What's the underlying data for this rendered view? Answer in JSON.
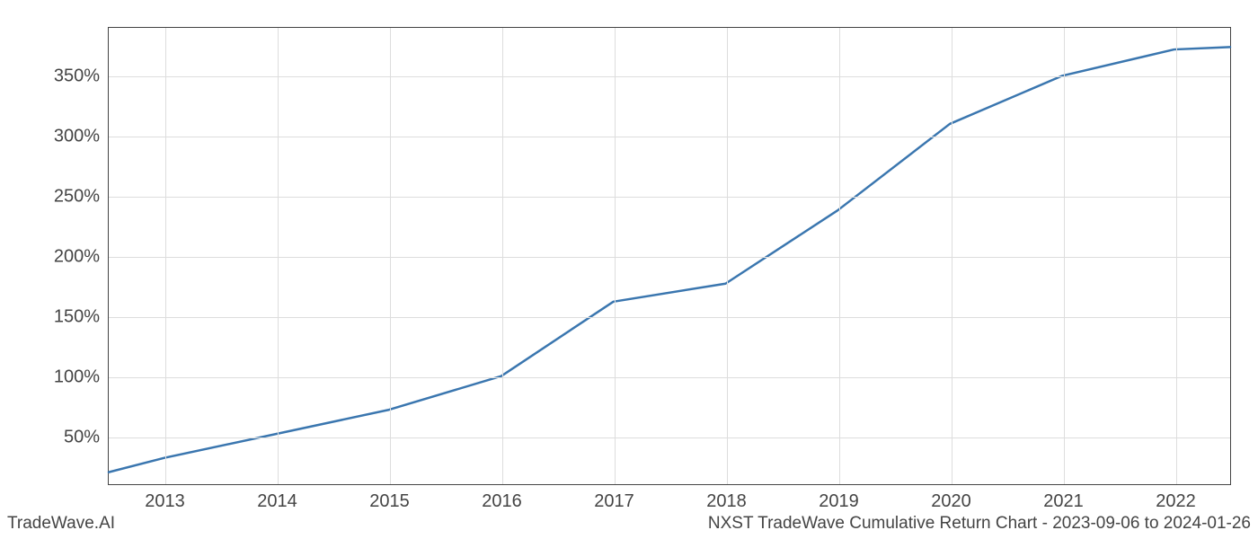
{
  "chart": {
    "type": "line",
    "background_color": "#ffffff",
    "grid_color": "#dddddd",
    "axis_color": "#444444",
    "tick_label_color": "#444444",
    "tick_label_fontsize": 20,
    "footer_fontsize": 19,
    "line_color": "#3a76af",
    "line_width": 2.5,
    "x": {
      "ticks": [
        2013,
        2014,
        2015,
        2016,
        2017,
        2018,
        2019,
        2020,
        2021,
        2022
      ],
      "lim": [
        2012.5,
        2022.5
      ]
    },
    "y": {
      "ticks": [
        50,
        100,
        150,
        200,
        250,
        300,
        350
      ],
      "tick_suffix": "%",
      "lim": [
        10,
        390
      ]
    },
    "series": [
      {
        "x": 2012.5,
        "y": 20
      },
      {
        "x": 2013,
        "y": 32
      },
      {
        "x": 2014,
        "y": 52
      },
      {
        "x": 2015,
        "y": 72
      },
      {
        "x": 2016,
        "y": 100
      },
      {
        "x": 2017,
        "y": 162
      },
      {
        "x": 2018,
        "y": 177
      },
      {
        "x": 2019,
        "y": 238
      },
      {
        "x": 2020,
        "y": 310
      },
      {
        "x": 2021,
        "y": 350
      },
      {
        "x": 2022,
        "y": 372
      },
      {
        "x": 2022.5,
        "y": 374
      }
    ]
  },
  "footer": {
    "left": "TradeWave.AI",
    "right": "NXST TradeWave Cumulative Return Chart - 2023-09-06 to 2024-01-26"
  }
}
